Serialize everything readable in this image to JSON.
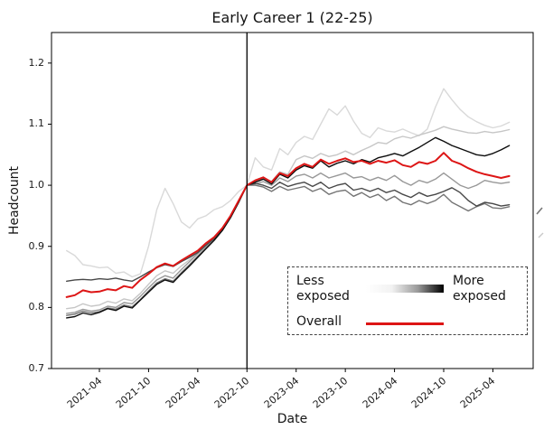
{
  "chart_data": {
    "type": "line",
    "title": "Early Career 1 (22-25)",
    "xlabel": "Date",
    "ylabel": "Headcount",
    "ylim": [
      0.7,
      1.25
    ],
    "grid": false,
    "x_unit": "month",
    "x_start": "2020-12",
    "x_end": "2025-06",
    "x_ticks": [
      "2021-04",
      "2021-10",
      "2022-04",
      "2022-10",
      "2023-04",
      "2023-10",
      "2024-04",
      "2024-10",
      "2025-04"
    ],
    "y_ticks": [
      "0.7",
      "0.8",
      "0.9",
      "1.0",
      "1.1",
      "1.2"
    ],
    "vline": "2022-10",
    "baseline_value": 1.0,
    "legend": {
      "less_label": "Less exposed",
      "more_label": "More exposed",
      "overall_label": "Overall",
      "overall_color": "#dd1515",
      "gradient": [
        "#ffffff",
        "#000000"
      ],
      "position": "lower right",
      "box_style": "dashed"
    },
    "series": [
      {
        "name": "exposure-group-1-least-exposed",
        "color": "#d9d9d9",
        "width": 1.4,
        "values": [
          0.893,
          0.885,
          0.87,
          0.868,
          0.865,
          0.866,
          0.856,
          0.858,
          0.85,
          0.855,
          0.9,
          0.96,
          0.995,
          0.97,
          0.94,
          0.93,
          0.945,
          0.95,
          0.96,
          0.965,
          0.975,
          0.99,
          1.0,
          1.045,
          1.03,
          1.025,
          1.06,
          1.05,
          1.07,
          1.08,
          1.075,
          1.1,
          1.125,
          1.115,
          1.13,
          1.105,
          1.085,
          1.078,
          1.094,
          1.089,
          1.087,
          1.092,
          1.086,
          1.081,
          1.092,
          1.128,
          1.158,
          1.14,
          1.124,
          1.112,
          1.104,
          1.098,
          1.094,
          1.097,
          1.103
        ]
      },
      {
        "name": "exposure-group-2",
        "color": "#c6c6c6",
        "width": 1.4,
        "values": [
          0.798,
          0.8,
          0.806,
          0.802,
          0.804,
          0.81,
          0.807,
          0.814,
          0.811,
          0.823,
          0.838,
          0.852,
          0.86,
          0.856,
          0.868,
          0.878,
          0.889,
          0.902,
          0.913,
          0.928,
          0.948,
          0.973,
          1.0,
          1.006,
          1.012,
          1.006,
          1.022,
          1.018,
          1.042,
          1.048,
          1.044,
          1.052,
          1.047,
          1.05,
          1.056,
          1.05,
          1.057,
          1.063,
          1.07,
          1.068,
          1.076,
          1.08,
          1.077,
          1.082,
          1.086,
          1.09,
          1.096,
          1.092,
          1.089,
          1.086,
          1.085,
          1.088,
          1.086,
          1.088,
          1.091
        ]
      },
      {
        "name": "exposure-group-3",
        "color": "#989898",
        "width": 1.4,
        "values": [
          0.79,
          0.792,
          0.797,
          0.794,
          0.796,
          0.802,
          0.8,
          0.808,
          0.806,
          0.818,
          0.832,
          0.845,
          0.852,
          0.848,
          0.862,
          0.875,
          0.888,
          0.9,
          0.912,
          0.928,
          0.948,
          0.974,
          1.0,
          1.002,
          1.006,
          1.0,
          1.012,
          1.006,
          1.015,
          1.018,
          1.012,
          1.02,
          1.012,
          1.016,
          1.02,
          1.012,
          1.014,
          1.008,
          1.013,
          1.008,
          1.016,
          1.006,
          1.0,
          1.008,
          1.004,
          1.01,
          1.02,
          1.01,
          1.0,
          0.995,
          1.0,
          1.008,
          1.005,
          1.003,
          1.005
        ]
      },
      {
        "name": "exposure-group-4",
        "color": "#747474",
        "width": 1.4,
        "values": [
          0.787,
          0.789,
          0.794,
          0.791,
          0.793,
          0.799,
          0.797,
          0.804,
          0.801,
          0.813,
          0.827,
          0.84,
          0.847,
          0.843,
          0.857,
          0.87,
          0.884,
          0.897,
          0.91,
          0.926,
          0.947,
          0.973,
          1.0,
          1.0,
          0.997,
          0.99,
          0.998,
          0.992,
          0.995,
          0.998,
          0.99,
          0.995,
          0.985,
          0.99,
          0.992,
          0.982,
          0.988,
          0.98,
          0.985,
          0.975,
          0.982,
          0.972,
          0.968,
          0.975,
          0.97,
          0.975,
          0.985,
          0.972,
          0.965,
          0.958,
          0.965,
          0.97,
          0.963,
          0.962,
          0.965
        ]
      },
      {
        "name": "exposure-group-5",
        "color": "#484848",
        "width": 1.4,
        "values": [
          0.843,
          0.845,
          0.846,
          0.845,
          0.847,
          0.846,
          0.848,
          0.845,
          0.843,
          0.85,
          0.858,
          0.865,
          0.87,
          0.867,
          0.875,
          0.882,
          0.89,
          0.902,
          0.913,
          0.928,
          0.947,
          0.972,
          1.0,
          1.003,
          1.0,
          0.995,
          1.005,
          0.998,
          1.002,
          1.005,
          0.998,
          1.005,
          0.995,
          1.0,
          1.003,
          0.992,
          0.995,
          0.99,
          0.995,
          0.988,
          0.992,
          0.985,
          0.98,
          0.988,
          0.982,
          0.985,
          0.99,
          0.996,
          0.988,
          0.975,
          0.966,
          0.972,
          0.97,
          0.966,
          0.968
        ]
      },
      {
        "name": "exposure-group-6-most-exposed",
        "color": "#0d0d0d",
        "width": 1.4,
        "values": [
          0.783,
          0.785,
          0.791,
          0.788,
          0.792,
          0.798,
          0.795,
          0.802,
          0.799,
          0.812,
          0.825,
          0.838,
          0.845,
          0.841,
          0.855,
          0.868,
          0.882,
          0.896,
          0.91,
          0.926,
          0.947,
          0.973,
          1.0,
          1.005,
          1.01,
          1.002,
          1.018,
          1.012,
          1.025,
          1.032,
          1.028,
          1.04,
          1.03,
          1.036,
          1.04,
          1.035,
          1.042,
          1.038,
          1.045,
          1.048,
          1.052,
          1.048,
          1.055,
          1.062,
          1.07,
          1.078,
          1.072,
          1.065,
          1.06,
          1.055,
          1.05,
          1.048,
          1.052,
          1.058,
          1.065
        ]
      },
      {
        "name": "overall",
        "color": "#dd1515",
        "width": 2.0,
        "values": [
          0.817,
          0.82,
          0.828,
          0.825,
          0.826,
          0.83,
          0.828,
          0.835,
          0.832,
          0.845,
          0.855,
          0.866,
          0.872,
          0.868,
          0.877,
          0.885,
          0.893,
          0.905,
          0.915,
          0.93,
          0.95,
          0.975,
          1.0,
          1.008,
          1.013,
          1.005,
          1.02,
          1.015,
          1.028,
          1.035,
          1.03,
          1.042,
          1.035,
          1.04,
          1.044,
          1.038,
          1.04,
          1.035,
          1.04,
          1.037,
          1.041,
          1.033,
          1.03,
          1.038,
          1.035,
          1.04,
          1.053,
          1.04,
          1.035,
          1.028,
          1.022,
          1.018,
          1.015,
          1.012,
          1.015
        ]
      }
    ]
  }
}
